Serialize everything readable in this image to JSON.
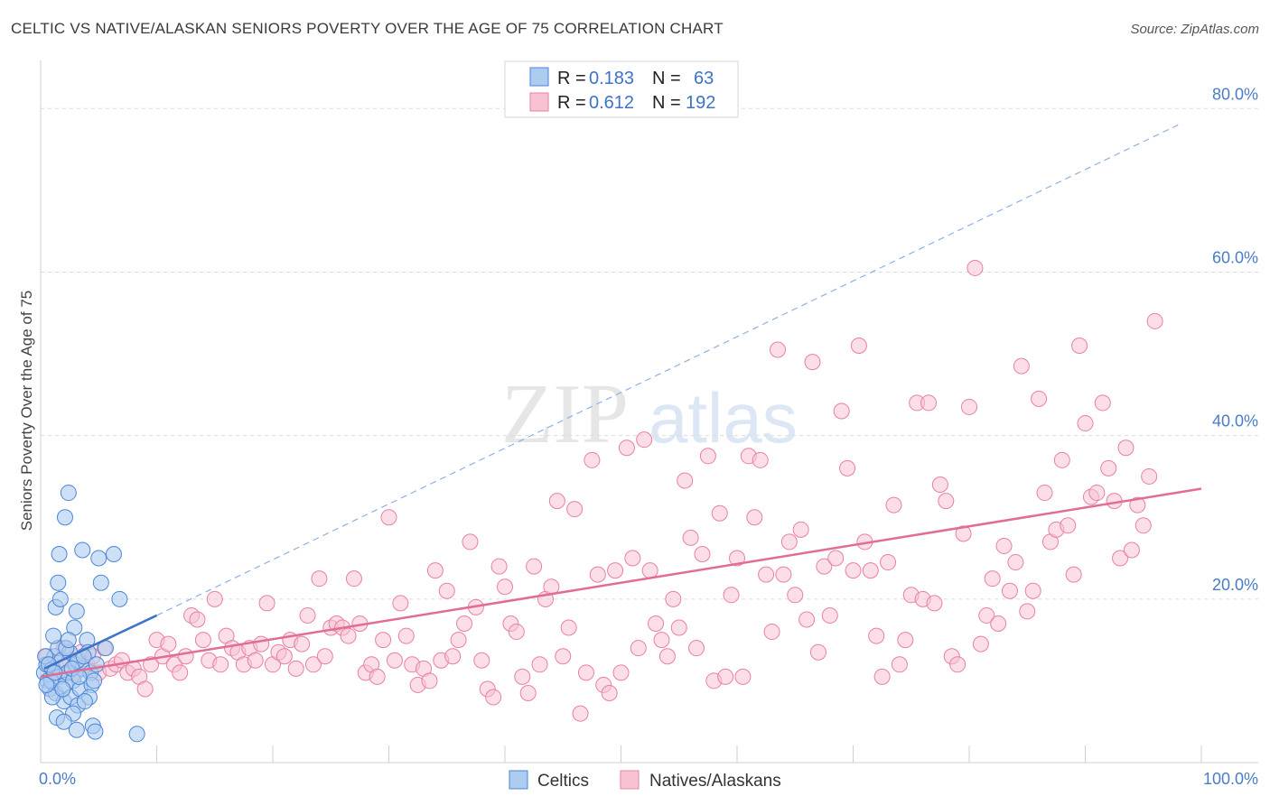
{
  "title": "CELTIC VS NATIVE/ALASKAN SENIORS POVERTY OVER THE AGE OF 75 CORRELATION CHART",
  "source": "Source: ZipAtlas.com",
  "watermark": {
    "zip": "ZIP",
    "atlas": "atlas"
  },
  "colors": {
    "celtic_fill": "#aecbf0",
    "celtic_stroke": "#4a86d6",
    "celtic_line": "#3b73c9",
    "native_fill": "#f7c3d3",
    "native_stroke": "#e8819f",
    "native_line": "#e16d95",
    "tick_label": "#4a7cc7",
    "grid": "#dcdcdc"
  },
  "legend": {
    "celtic": {
      "r_label": "R =",
      "r_value": "0.183",
      "n_label": "N =",
      "n_value": "63"
    },
    "native": {
      "r_label": "R =",
      "r_value": "0.612",
      "n_label": "N =",
      "n_value": "192"
    }
  },
  "chart_data": {
    "type": "scatter",
    "title": "CELTIC VS NATIVE/ALASKAN SENIORS POVERTY OVER THE AGE OF 75 CORRELATION CHART",
    "xlabel": "",
    "ylabel": "Seniors Poverty Over the Age of 75",
    "xlim": [
      0,
      100
    ],
    "ylim": [
      0,
      85
    ],
    "x_ticks": [
      "0.0%",
      "100.0%"
    ],
    "y_ticks": [
      {
        "value": 20,
        "label": "20.0%"
      },
      {
        "value": 40,
        "label": "40.0%"
      },
      {
        "value": 60,
        "label": "60.0%"
      },
      {
        "value": 80,
        "label": "80.0%"
      }
    ],
    "legend_entries": [
      "Celtics",
      "Natives/Alaskans"
    ],
    "series": [
      {
        "name": "Celtics",
        "R": 0.183,
        "N": 63,
        "trend": {
          "x0": 0.3,
          "y0": 11.5,
          "x1": 10,
          "y1": 18.0
        },
        "trend_ext": {
          "x0": 10,
          "y0": 18.0,
          "x1": 98,
          "y1": 78
        },
        "points": [
          [
            0.3,
            11
          ],
          [
            0.5,
            12
          ],
          [
            0.6,
            10
          ],
          [
            0.8,
            9
          ],
          [
            1,
            11.5
          ],
          [
            1.2,
            13
          ],
          [
            1.3,
            8.5
          ],
          [
            1.5,
            14
          ],
          [
            1.6,
            10.5
          ],
          [
            1.8,
            12.5
          ],
          [
            2,
            7.5
          ],
          [
            2.1,
            9.5
          ],
          [
            2.3,
            11
          ],
          [
            2.5,
            13.5
          ],
          [
            2.6,
            8
          ],
          [
            2.8,
            10
          ],
          [
            3,
            12
          ],
          [
            3.2,
            7
          ],
          [
            3.4,
            9
          ],
          [
            3.6,
            11.5
          ],
          [
            1.1,
            15.5
          ],
          [
            1.3,
            19
          ],
          [
            1.5,
            22
          ],
          [
            1.7,
            20
          ],
          [
            1.6,
            25.5
          ],
          [
            2.1,
            30
          ],
          [
            2.4,
            33
          ],
          [
            3.1,
            18.5
          ],
          [
            2.9,
            16.5
          ],
          [
            3.2,
            12.5
          ],
          [
            3.6,
            26
          ],
          [
            4,
            15
          ],
          [
            4.1,
            13.5
          ],
          [
            4.3,
            11
          ],
          [
            4.4,
            9.5
          ],
          [
            4.2,
            8
          ],
          [
            3.8,
            7.5
          ],
          [
            4.6,
            10
          ],
          [
            5,
            25
          ],
          [
            5.2,
            22
          ],
          [
            5.6,
            14
          ],
          [
            6.3,
            25.5
          ],
          [
            6.8,
            20
          ],
          [
            2.8,
            6
          ],
          [
            1.4,
            5.5
          ],
          [
            2.0,
            5
          ],
          [
            3.1,
            4
          ],
          [
            4.5,
            4.5
          ],
          [
            4.7,
            3.8
          ],
          [
            8.3,
            3.5
          ],
          [
            0.4,
            13
          ],
          [
            0.7,
            12
          ],
          [
            0.9,
            10
          ],
          [
            1.0,
            8
          ],
          [
            1.9,
            9
          ],
          [
            2.2,
            14
          ],
          [
            2.7,
            11.5
          ],
          [
            3.3,
            10.5
          ],
          [
            0.5,
            9.5
          ],
          [
            1.2,
            11
          ],
          [
            4.8,
            12
          ],
          [
            3.7,
            13
          ],
          [
            2.4,
            15
          ]
        ]
      },
      {
        "name": "Natives/Alaskans",
        "R": 0.612,
        "N": 192,
        "trend": {
          "x0": 0,
          "y0": 10.5,
          "x1": 100,
          "y1": 33.5
        },
        "points": [
          [
            0.5,
            13
          ],
          [
            1,
            12
          ],
          [
            1.5,
            11
          ],
          [
            2,
            14
          ],
          [
            2.5,
            12.5
          ],
          [
            3,
            11
          ],
          [
            3.5,
            13.5
          ],
          [
            4,
            12
          ],
          [
            4.5,
            13
          ],
          [
            5,
            11
          ],
          [
            5.5,
            14
          ],
          [
            6,
            11.5
          ],
          [
            6.5,
            12
          ],
          [
            7,
            12.5
          ],
          [
            7.5,
            11
          ],
          [
            8,
            11.5
          ],
          [
            8.5,
            10.5
          ],
          [
            9,
            9
          ],
          [
            9.5,
            12
          ],
          [
            10,
            15
          ],
          [
            10.5,
            13
          ],
          [
            11,
            14.5
          ],
          [
            11.5,
            12
          ],
          [
            12,
            11
          ],
          [
            12.5,
            13
          ],
          [
            13,
            18
          ],
          [
            13.5,
            17.5
          ],
          [
            14,
            15
          ],
          [
            14.5,
            12.5
          ],
          [
            15,
            20
          ],
          [
            15.5,
            12
          ],
          [
            16,
            15.5
          ],
          [
            16.5,
            14
          ],
          [
            17,
            13.5
          ],
          [
            17.5,
            12
          ],
          [
            18,
            14
          ],
          [
            18.5,
            12.5
          ],
          [
            19,
            14.5
          ],
          [
            19.5,
            19.5
          ],
          [
            20,
            12
          ],
          [
            20.5,
            13.5
          ],
          [
            21,
            13
          ],
          [
            21.5,
            15
          ],
          [
            22,
            11.5
          ],
          [
            22.5,
            14.5
          ],
          [
            23,
            18
          ],
          [
            23.5,
            12
          ],
          [
            24,
            22.5
          ],
          [
            24.5,
            13
          ],
          [
            25,
            16.5
          ],
          [
            25.5,
            17
          ],
          [
            26,
            16.5
          ],
          [
            26.5,
            15.5
          ],
          [
            27,
            22.5
          ],
          [
            27.5,
            17
          ],
          [
            28,
            11
          ],
          [
            28.5,
            12
          ],
          [
            29,
            10.5
          ],
          [
            29.5,
            15
          ],
          [
            30,
            30
          ],
          [
            30.5,
            12.5
          ],
          [
            31,
            19.5
          ],
          [
            31.5,
            15.5
          ],
          [
            32,
            12
          ],
          [
            32.5,
            9.5
          ],
          [
            33,
            11.5
          ],
          [
            33.5,
            10
          ],
          [
            34,
            23.5
          ],
          [
            34.5,
            12.5
          ],
          [
            35,
            21
          ],
          [
            35.5,
            13
          ],
          [
            36,
            15
          ],
          [
            36.5,
            17
          ],
          [
            37,
            27
          ],
          [
            37.5,
            19
          ],
          [
            38,
            12.5
          ],
          [
            38.5,
            9
          ],
          [
            39,
            8
          ],
          [
            39.5,
            24
          ],
          [
            40,
            21.5
          ],
          [
            40.5,
            17
          ],
          [
            41,
            16
          ],
          [
            41.5,
            10.5
          ],
          [
            42,
            8.5
          ],
          [
            42.5,
            24
          ],
          [
            43,
            12
          ],
          [
            43.5,
            20
          ],
          [
            44,
            21.5
          ],
          [
            44.5,
            32
          ],
          [
            45,
            13
          ],
          [
            45.5,
            16.5
          ],
          [
            46,
            31
          ],
          [
            46.5,
            6
          ],
          [
            47,
            11
          ],
          [
            47.5,
            37
          ],
          [
            48,
            23
          ],
          [
            48.5,
            9.5
          ],
          [
            49,
            8.5
          ],
          [
            49.5,
            23.5
          ],
          [
            50,
            11
          ],
          [
            50.5,
            38.5
          ],
          [
            51,
            25
          ],
          [
            51.5,
            14
          ],
          [
            52,
            39.5
          ],
          [
            52.5,
            23.5
          ],
          [
            53,
            17
          ],
          [
            53.5,
            15
          ],
          [
            54,
            13
          ],
          [
            54.5,
            20
          ],
          [
            55,
            16.5
          ],
          [
            55.5,
            34.5
          ],
          [
            56,
            27.5
          ],
          [
            56.5,
            14
          ],
          [
            57,
            25.5
          ],
          [
            57.5,
            37.5
          ],
          [
            58,
            10
          ],
          [
            58.5,
            30.5
          ],
          [
            59,
            10.5
          ],
          [
            59.5,
            20.5
          ],
          [
            60,
            25
          ],
          [
            60.5,
            10.5
          ],
          [
            61,
            37.5
          ],
          [
            61.5,
            30
          ],
          [
            62,
            37
          ],
          [
            62.5,
            23
          ],
          [
            63,
            16
          ],
          [
            63.5,
            50.5
          ],
          [
            64,
            23
          ],
          [
            64.5,
            27
          ],
          [
            65,
            20.5
          ],
          [
            65.5,
            28.5
          ],
          [
            66,
            17.5
          ],
          [
            66.5,
            49
          ],
          [
            67,
            13.5
          ],
          [
            67.5,
            24
          ],
          [
            68,
            18
          ],
          [
            68.5,
            25
          ],
          [
            69,
            43
          ],
          [
            69.5,
            36
          ],
          [
            70,
            23.5
          ],
          [
            70.5,
            51
          ],
          [
            71,
            27
          ],
          [
            71.5,
            23.5
          ],
          [
            72,
            15.5
          ],
          [
            72.5,
            10.5
          ],
          [
            73,
            24.5
          ],
          [
            73.5,
            31.5
          ],
          [
            74,
            12
          ],
          [
            74.5,
            15
          ],
          [
            75,
            20.5
          ],
          [
            75.5,
            44
          ],
          [
            76,
            20
          ],
          [
            76.5,
            44
          ],
          [
            77,
            19.5
          ],
          [
            77.5,
            34
          ],
          [
            78,
            32
          ],
          [
            78.5,
            13
          ],
          [
            79,
            12
          ],
          [
            79.5,
            28
          ],
          [
            80,
            43.5
          ],
          [
            80.5,
            60.5
          ],
          [
            81,
            14.5
          ],
          [
            81.5,
            18
          ],
          [
            82,
            22.5
          ],
          [
            82.5,
            17
          ],
          [
            83,
            26.5
          ],
          [
            83.5,
            21
          ],
          [
            84,
            24.5
          ],
          [
            84.5,
            48.5
          ],
          [
            85,
            18.5
          ],
          [
            85.5,
            21
          ],
          [
            86,
            44.5
          ],
          [
            86.5,
            33
          ],
          [
            87,
            27
          ],
          [
            87.5,
            28.5
          ],
          [
            88,
            37
          ],
          [
            88.5,
            29
          ],
          [
            89,
            23
          ],
          [
            89.5,
            51
          ],
          [
            90,
            41.5
          ],
          [
            90.5,
            32.5
          ],
          [
            91,
            33
          ],
          [
            91.5,
            44
          ],
          [
            92,
            36
          ],
          [
            92.5,
            32
          ],
          [
            93,
            25
          ],
          [
            93.5,
            38.5
          ],
          [
            94,
            26
          ],
          [
            94.5,
            31.5
          ],
          [
            95,
            29
          ],
          [
            95.5,
            35
          ],
          [
            96,
            54
          ]
        ]
      }
    ]
  },
  "bottom_legend": {
    "celtic": "Celtics",
    "native": "Natives/Alaskans"
  }
}
